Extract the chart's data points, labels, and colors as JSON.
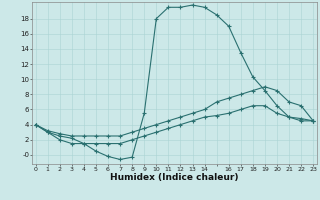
{
  "xlabel": "Humidex (Indice chaleur)",
  "bg_color": "#cce8e8",
  "line_color": "#2a7070",
  "grid_color": "#aad4d4",
  "xlim": [
    -0.3,
    23.3
  ],
  "ylim": [
    -1.2,
    20.2
  ],
  "xtick_vals": [
    0,
    1,
    2,
    3,
    4,
    5,
    6,
    7,
    8,
    9,
    10,
    11,
    12,
    13,
    14,
    15,
    16,
    17,
    18,
    19,
    20,
    21,
    22,
    23
  ],
  "xtick_labels": [
    "0",
    "1",
    "2",
    "3",
    "4",
    "5",
    "6",
    "7",
    "8",
    "9",
    "10",
    "11",
    "12",
    "13",
    "14",
    "",
    "16",
    "17",
    "18",
    "19",
    "20",
    "21",
    "22",
    "23"
  ],
  "ytick_vals": [
    0,
    2,
    4,
    6,
    8,
    10,
    12,
    14,
    16,
    18
  ],
  "ytick_labels": [
    "-0",
    "2",
    "4",
    "6",
    "8",
    "10",
    "12",
    "14",
    "16",
    "18"
  ],
  "curve1_x": [
    0,
    1,
    2,
    3,
    4,
    5,
    6,
    7,
    8,
    9,
    10,
    11,
    12,
    13,
    14,
    15,
    16,
    17,
    18,
    19,
    20,
    21,
    22,
    23
  ],
  "curve1_y": [
    4.0,
    3.0,
    2.5,
    2.2,
    1.5,
    0.5,
    -0.2,
    -0.6,
    -0.3,
    5.5,
    18.0,
    19.5,
    19.5,
    19.8,
    19.5,
    18.5,
    17.0,
    13.5,
    10.3,
    8.5,
    6.5,
    5.0,
    4.5,
    4.5
  ],
  "curve2_x": [
    0,
    1,
    2,
    3,
    4,
    5,
    6,
    7,
    8,
    9,
    10,
    11,
    12,
    13,
    14,
    15,
    16,
    17,
    18,
    19,
    20,
    21,
    22,
    23
  ],
  "curve2_y": [
    4.0,
    3.2,
    2.8,
    2.5,
    2.5,
    2.5,
    2.5,
    2.5,
    3.0,
    3.5,
    4.0,
    4.5,
    5.0,
    5.5,
    6.0,
    7.0,
    7.5,
    8.0,
    8.5,
    9.0,
    8.5,
    7.0,
    6.5,
    4.5
  ],
  "curve3_x": [
    0,
    1,
    2,
    3,
    4,
    5,
    6,
    7,
    8,
    9,
    10,
    11,
    12,
    13,
    14,
    15,
    16,
    17,
    18,
    19,
    20,
    21,
    22,
    23
  ],
  "curve3_y": [
    4.0,
    3.0,
    2.0,
    1.5,
    1.5,
    1.5,
    1.5,
    1.5,
    2.0,
    2.5,
    3.0,
    3.5,
    4.0,
    4.5,
    5.0,
    5.2,
    5.5,
    6.0,
    6.5,
    6.5,
    5.5,
    5.0,
    4.8,
    4.5
  ]
}
